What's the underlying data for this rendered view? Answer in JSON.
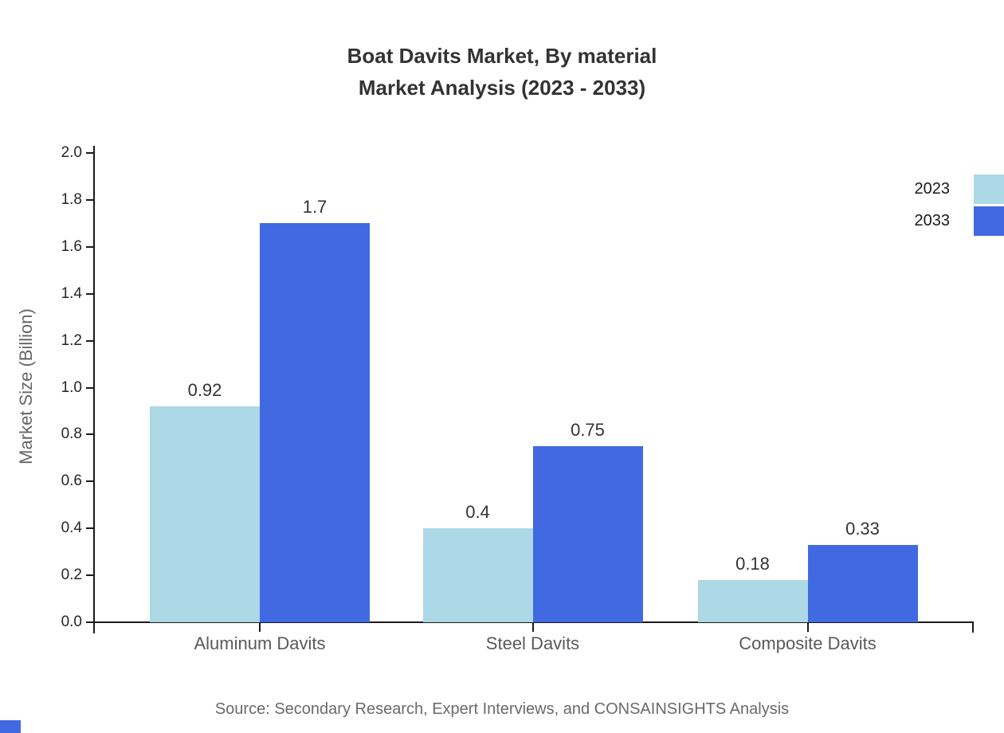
{
  "title": {
    "line1": "Boat Davits Market, By material",
    "line2": "Market Analysis (2023 - 2033)"
  },
  "chart_data": {
    "type": "bar",
    "title": "Boat Davits Market, By material Market Analysis (2023 - 2033)",
    "categories": [
      "Aluminum Davits",
      "Steel Davits",
      "Composite Davits"
    ],
    "series": [
      {
        "name": "2023",
        "color": "#ADD8E6",
        "values": [
          0.92,
          0.4,
          0.18
        ],
        "value_labels": [
          "0.92",
          "0.4",
          "0.18"
        ]
      },
      {
        "name": "2033",
        "color": "#4169E1",
        "values": [
          1.7,
          0.75,
          0.33
        ],
        "value_labels": [
          "1.7",
          "0.75",
          "0.33"
        ]
      }
    ],
    "xlabel": "",
    "ylabel": "Market Size (Billion)",
    "ylim": [
      0.0,
      2.0
    ],
    "ytick_step": 0.2,
    "ytick_labels": [
      "0.0",
      "0.2",
      "0.4",
      "0.6",
      "0.8",
      "1.0",
      "1.2",
      "1.4",
      "1.6",
      "1.8",
      "2.0"
    ],
    "grid": false,
    "legend_position": "top-right",
    "bar_value_labels_shown": true
  },
  "legend": {
    "items": [
      {
        "label": "2023",
        "color": "#ADD8E6"
      },
      {
        "label": "2033",
        "color": "#4169E1"
      }
    ]
  },
  "source_note": "Source: Secondary Research, Expert Interviews, and CONSAINSIGHTS Analysis",
  "colors": {
    "series_2023": "#ADD8E6",
    "series_2033": "#4169E1",
    "title_text": "#333333",
    "axis_line": "#1a1a1a",
    "tick_text": "#262626",
    "category_text": "#595959",
    "source_text": "#6a6a6a",
    "corner_mark": "#4169E1"
  }
}
